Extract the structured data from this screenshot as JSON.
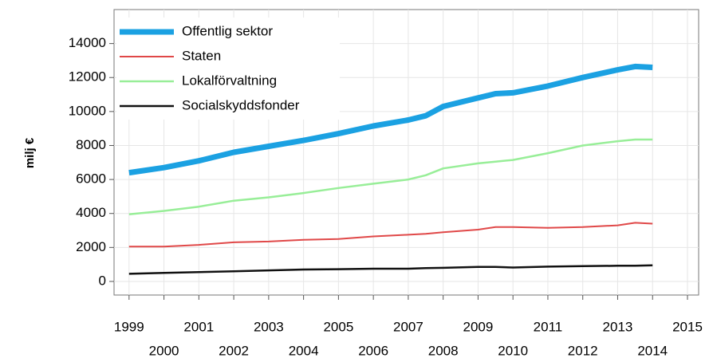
{
  "chart_data": {
    "type": "line",
    "ylabel": "milj €",
    "x": [
      1999,
      2000,
      2001,
      2002,
      2003,
      2004,
      2005,
      2006,
      2007,
      2007.5,
      2008,
      2009,
      2009.5,
      2010,
      2011,
      2012,
      2013,
      2013.5,
      2014
    ],
    "series": [
      {
        "name": "Offentlig sektor",
        "color": "#1ba1e2",
        "values": [
          6400,
          6700,
          7100,
          7600,
          7950,
          8300,
          8700,
          9150,
          9500,
          9750,
          10300,
          10800,
          11050,
          11100,
          11500,
          12000,
          12450,
          12650,
          12600
        ]
      },
      {
        "name": "Staten",
        "color": "#e04848",
        "values": [
          2050,
          2050,
          2150,
          2300,
          2350,
          2450,
          2500,
          2650,
          2750,
          2800,
          2900,
          3050,
          3200,
          3200,
          3150,
          3200,
          3300,
          3450,
          3400
        ]
      },
      {
        "name": "Lokalförvaltning",
        "color": "#98ee98",
        "values": [
          3950,
          4150,
          4400,
          4750,
          4950,
          5200,
          5500,
          5750,
          6000,
          6250,
          6650,
          6950,
          7050,
          7150,
          7550,
          8000,
          8250,
          8350,
          8350
        ]
      },
      {
        "name": "Socialskyddsfonder",
        "color": "#111111",
        "values": [
          450,
          500,
          550,
          600,
          650,
          700,
          720,
          750,
          750,
          780,
          800,
          850,
          850,
          820,
          870,
          900,
          920,
          920,
          950
        ]
      }
    ],
    "xlim": [
      1998.57,
      2015.32
    ],
    "xticks": [
      1999,
      2000,
      2001,
      2002,
      2003,
      2004,
      2005,
      2006,
      2007,
      2008,
      2009,
      2010,
      2011,
      2012,
      2013,
      2014,
      2015
    ],
    "ylim": [
      -800,
      16000
    ],
    "yticks": [
      0,
      2000,
      4000,
      6000,
      8000,
      10000,
      12000,
      14000
    ],
    "grid": true,
    "legend": "top-left"
  }
}
